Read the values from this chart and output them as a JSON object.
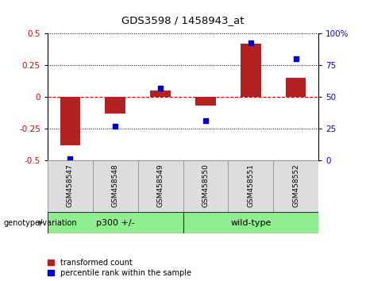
{
  "title": "GDS3598 / 1458943_at",
  "samples": [
    "GSM458547",
    "GSM458548",
    "GSM458549",
    "GSM458550",
    "GSM458551",
    "GSM458552"
  ],
  "bar_values": [
    -0.38,
    -0.13,
    0.05,
    -0.07,
    0.42,
    0.15
  ],
  "dot_values": [
    1,
    27,
    57,
    31,
    93,
    80
  ],
  "group_spans": [
    [
      0,
      3,
      "p300 +/-"
    ],
    [
      3,
      6,
      "wild-type"
    ]
  ],
  "group_color": "#90EE90",
  "bar_color": "#B22222",
  "dot_color": "#0000CC",
  "zero_line_color": "#CC0000",
  "grid_color": "#000000",
  "ylim_left": [
    -0.5,
    0.5
  ],
  "ylim_right": [
    0,
    100
  ],
  "yticks_left": [
    -0.5,
    -0.25,
    0,
    0.25,
    0.5
  ],
  "yticks_right": [
    0,
    25,
    50,
    75,
    100
  ],
  "ytick_labels_left": [
    "-0.5",
    "-0.25",
    "0",
    "0.25",
    "0.5"
  ],
  "ytick_labels_right": [
    "0",
    "25",
    "50",
    "75",
    "100%"
  ],
  "legend_labels": [
    "transformed count",
    "percentile rank within the sample"
  ],
  "xlabel_genotype": "genotype/variation",
  "sample_box_color": "#DDDDDD",
  "sample_box_edge": "#999999",
  "fig_width": 4.61,
  "fig_height": 3.54,
  "dpi": 100
}
